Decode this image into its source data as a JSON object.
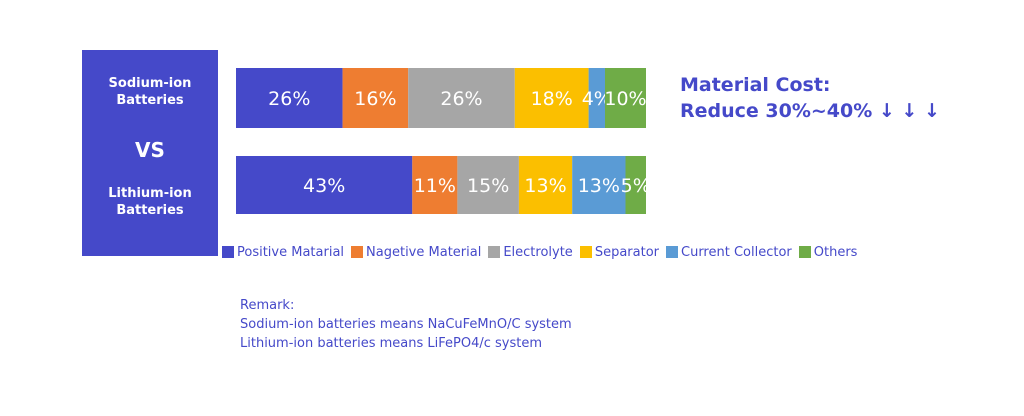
{
  "side_panel": {
    "top_label_lines": [
      "Sodium-ion",
      "Batteries"
    ],
    "vs_label": "VS",
    "bottom_label_lines": [
      "Lithium-ion",
      "Batteries"
    ]
  },
  "headline": {
    "line1": "Material Cost:",
    "line2": "Reduce 30%~40% ↓ ↓ ↓"
  },
  "chart_data": {
    "type": "bar",
    "orientation": "horizontal-stacked",
    "categories": [
      "Sodium-ion Batteries",
      "Lithium-ion Batteries"
    ],
    "series": [
      {
        "name": "Positive Matarial",
        "values": [
          26,
          43
        ],
        "labels": [
          "26%",
          "43%"
        ],
        "color": "#4549c9"
      },
      {
        "name": "Nagetive Material",
        "values": [
          16,
          11
        ],
        "labels": [
          "16%",
          "11%"
        ],
        "color": "#ee7d31"
      },
      {
        "name": "Electrolyte",
        "values": [
          26,
          15
        ],
        "labels": [
          "26%",
          "15%"
        ],
        "color": "#a6a6a6"
      },
      {
        "name": "Separator",
        "values": [
          18,
          13
        ],
        "labels": [
          "18%",
          "13%"
        ],
        "color": "#fbbf00"
      },
      {
        "name": "Current Collector",
        "values": [
          4,
          13
        ],
        "labels": [
          "4%",
          "13%"
        ],
        "color": "#5a9bd5"
      },
      {
        "name": "Others",
        "values": [
          10,
          5
        ],
        "labels": [
          "10%",
          "5%"
        ],
        "color": "#6fac47"
      }
    ],
    "legend_position": "bottom",
    "grid": false
  },
  "remark": {
    "title": "Remark:",
    "line1": "Sodium-ion batteries means NaCuFeMnO/C system",
    "line2": "Lithium-ion batteries means LiFePO4/c system"
  }
}
